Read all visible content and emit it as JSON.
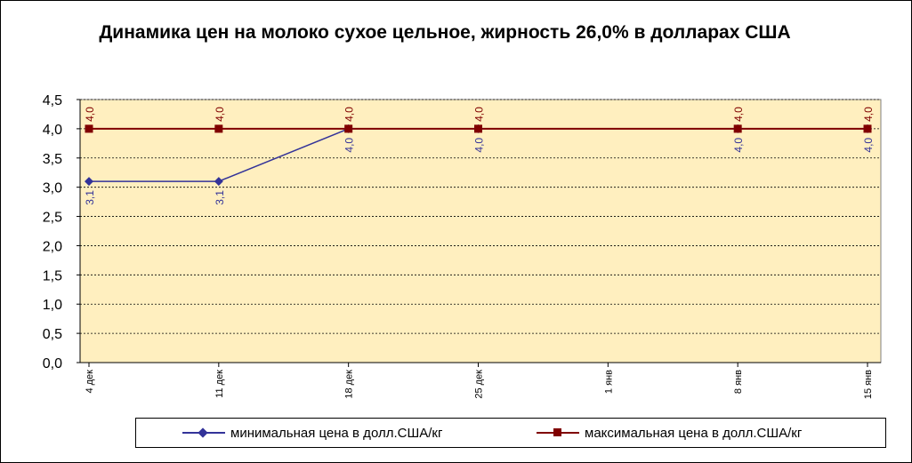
{
  "chart_data": {
    "type": "line",
    "title": "Динамика цен на молоко сухое цельное, жирность 26,0%  в долларах США",
    "categories": [
      "4 дек",
      "11 дек",
      "18 дек",
      "25 дек",
      "1 янв",
      "8 янв",
      "15 янв"
    ],
    "series": [
      {
        "name": "минимальная цена в долл.США/кг",
        "values": [
          3.1,
          3.1,
          4.0,
          4.0,
          null,
          4.0,
          4.0
        ],
        "labels": [
          "3,1",
          "3,1",
          "4,0",
          "4,0",
          "",
          "4,0",
          "4,0"
        ],
        "color": "#333399",
        "marker": "diamond"
      },
      {
        "name": "максимальная цена в долл.США/кг",
        "values": [
          4.0,
          4.0,
          4.0,
          4.0,
          null,
          4.0,
          4.0
        ],
        "labels": [
          "4,0",
          "4,0",
          "4,0",
          "4,0",
          "",
          "4,0",
          "4,0"
        ],
        "color": "#800000",
        "marker": "square"
      }
    ],
    "ylim": [
      0,
      4.5
    ],
    "yticks": [
      "0,0",
      "0,5",
      "1,0",
      "1,5",
      "2,0",
      "2,5",
      "3,0",
      "3,5",
      "4,0",
      "4,5"
    ],
    "grid": true,
    "plot_background": "#ffefbf",
    "legend_position": "bottom"
  }
}
